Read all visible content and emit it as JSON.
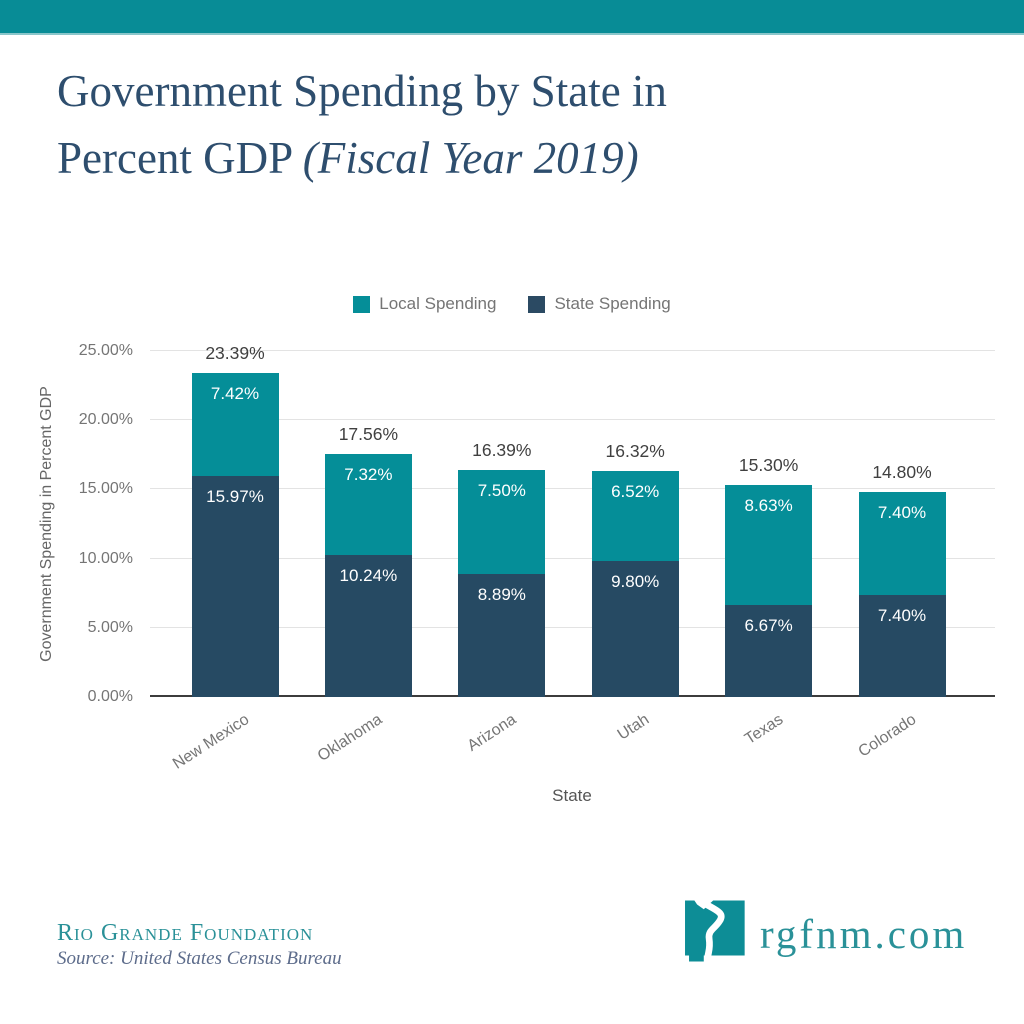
{
  "top_strip": {
    "color": "#088c96"
  },
  "title": {
    "line1": "Government Spending by State in",
    "line2": "Percent GDP ",
    "line2_italic": "(Fiscal Year 2019)",
    "color": "#2e4e6e"
  },
  "legend": {
    "items": [
      {
        "label": "Local Spending",
        "color": "#058e98"
      },
      {
        "label": "State Spending",
        "color": "#2b4a63"
      }
    ]
  },
  "chart_data": {
    "type": "bar",
    "stacked": true,
    "title": "Government Spending by State in Percent GDP (Fiscal Year 2019)",
    "categories": [
      "New Mexico",
      "Oklahoma",
      "Arizona",
      "Utah",
      "Texas",
      "Colorado"
    ],
    "series": [
      {
        "name": "State Spending",
        "color": "#264a63",
        "values": [
          15.97,
          10.24,
          8.89,
          9.8,
          6.67,
          7.4
        ],
        "labels": [
          "15.97%",
          "10.24%",
          "8.89%",
          "9.80%",
          "6.67%",
          "7.40%"
        ]
      },
      {
        "name": "Local Spending",
        "color": "#058e98",
        "values": [
          7.42,
          7.32,
          7.5,
          6.52,
          8.63,
          7.4
        ],
        "labels": [
          "7.42%",
          "7.32%",
          "7.50%",
          "6.52%",
          "8.63%",
          "7.40%"
        ]
      }
    ],
    "totals": [
      23.39,
      17.56,
      16.39,
      16.32,
      15.3,
      14.8
    ],
    "total_labels": [
      "23.39%",
      "17.56%",
      "16.39%",
      "16.32%",
      "15.30%",
      "14.80%"
    ],
    "xlabel": "State",
    "ylabel": "Government Spending in Percent GDP",
    "ylim": [
      0,
      25
    ],
    "yticks": [
      {
        "label": "0.00%",
        "value": 0
      },
      {
        "label": "5.00%",
        "value": 5
      },
      {
        "label": "10.00%",
        "value": 10
      },
      {
        "label": "15.00%",
        "value": 15
      },
      {
        "label": "20.00%",
        "value": 20
      },
      {
        "label": "25.00%",
        "value": 25
      }
    ],
    "grid": true,
    "legend_position": "top"
  },
  "footer": {
    "org": "Rio Grande Foundation",
    "source": "Source: United States Census Bureau",
    "site": "rgfnm.com"
  }
}
